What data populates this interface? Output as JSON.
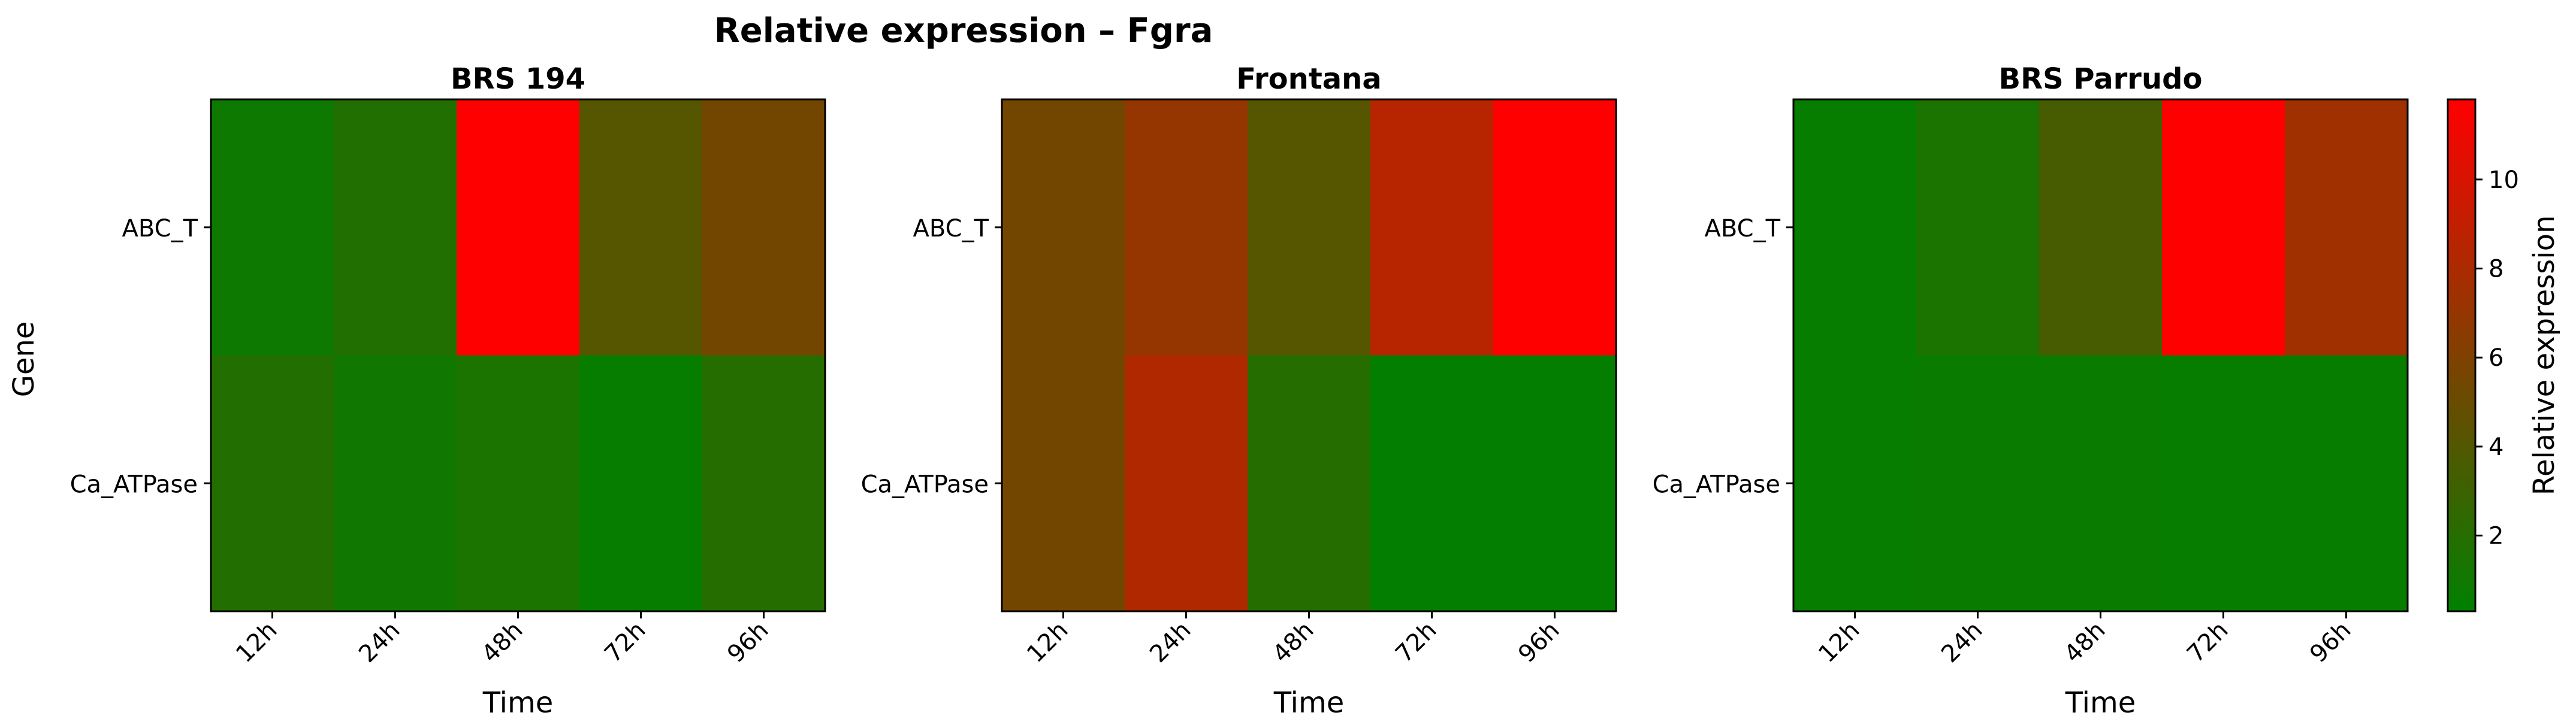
{
  "chart_data": {
    "type": "heatmap",
    "title": "Relative expression – Fgra",
    "xlabel": "Time",
    "ylabel": "Gene",
    "x_categories": [
      "12h",
      "24h",
      "48h",
      "72h",
      "96h"
    ],
    "y_categories": [
      "ABC_T",
      "Ca_ATPase"
    ],
    "colorbar": {
      "label": "Relative expression",
      "range": [
        0.3,
        11.8
      ],
      "ticks": [
        2,
        4,
        6,
        8,
        10
      ],
      "colors": [
        "#008000",
        "#ff0000"
      ]
    },
    "panels": [
      {
        "title": "BRS 194",
        "values": [
          [
            0.9,
            1.8,
            11.8,
            4.2,
            5.5
          ],
          [
            1.9,
            1.0,
            1.5,
            0.6,
            2.0
          ]
        ]
      },
      {
        "title": "Frontana",
        "values": [
          [
            5.5,
            7.0,
            4.2,
            8.5,
            11.8
          ],
          [
            5.5,
            8.2,
            2.0,
            0.5,
            0.5
          ]
        ]
      },
      {
        "title": "BRS Parrudo",
        "values": [
          [
            0.6,
            1.5,
            3.5,
            11.8,
            7.5
          ],
          [
            0.6,
            0.7,
            0.7,
            0.6,
            0.6
          ]
        ]
      }
    ]
  }
}
